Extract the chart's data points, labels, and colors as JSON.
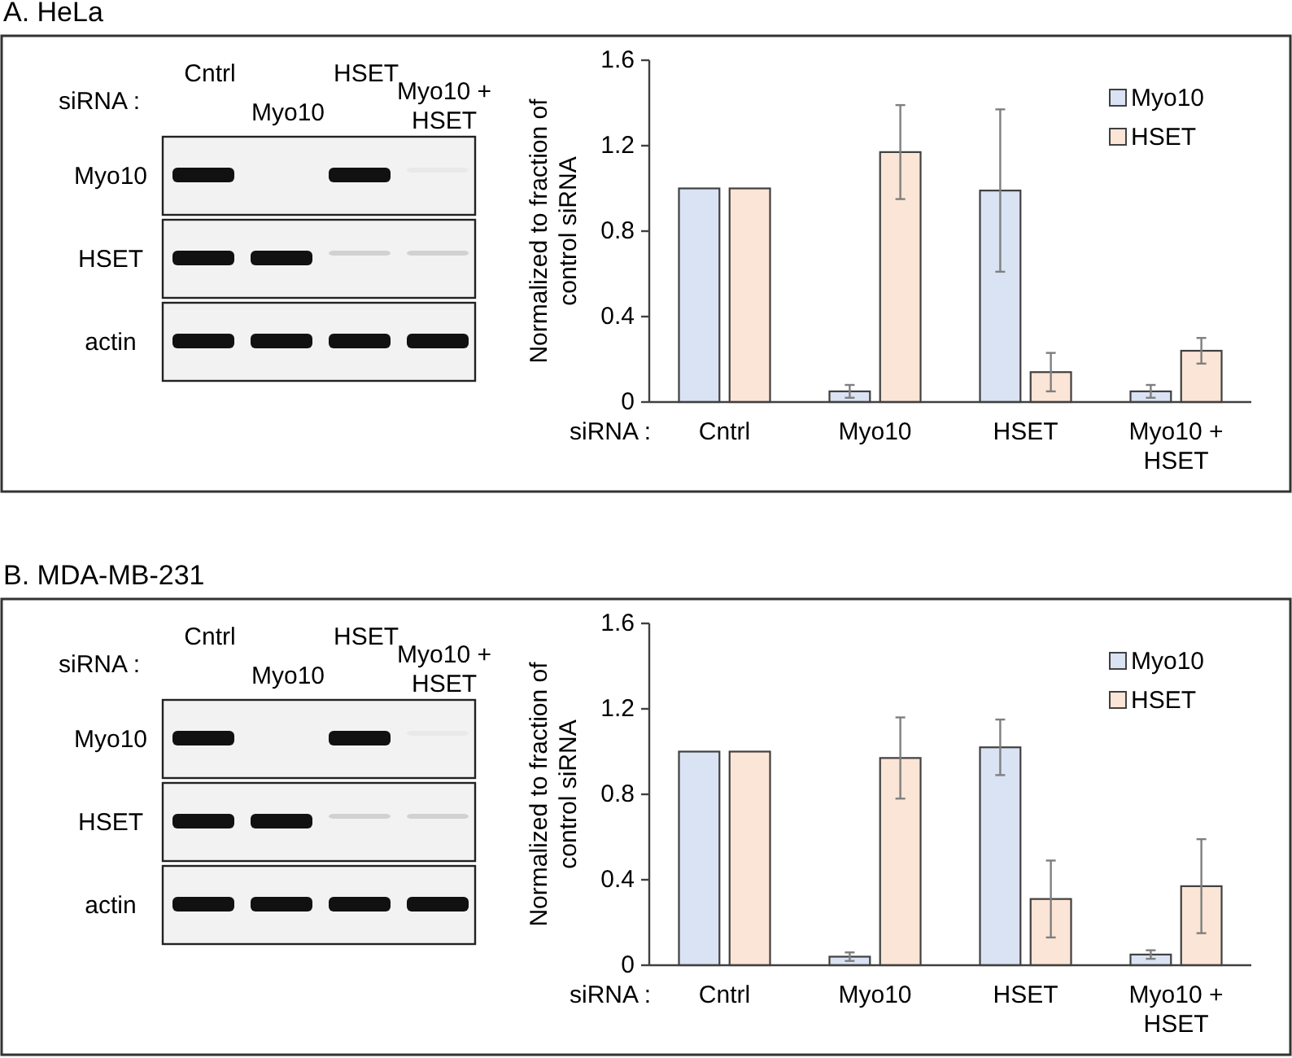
{
  "chart_data": [
    {
      "type": "bar",
      "xlabel": "siRNA :",
      "ylabel": "Normalized to fraction of control siRNA",
      "categories": [
        "Cntrl",
        "Myo10",
        "HSET",
        "Myo10 + HSET"
      ],
      "series": [
        {
          "name": "Myo10",
          "color": "#dae3f3",
          "values": [
            1,
            0.05,
            0.99,
            0.05
          ],
          "errors": [
            null,
            0.03,
            0.38,
            0.03
          ]
        },
        {
          "name": "HSET",
          "color": "#fbe5d6",
          "values": [
            1,
            1.17,
            0.14,
            0.24
          ],
          "errors": [
            null,
            0.22,
            0.09,
            0.06
          ]
        }
      ],
      "ylim": [
        0,
        1.6
      ],
      "yticks": [
        0,
        0.4,
        0.8,
        1.2,
        1.6
      ],
      "legend": "top right",
      "annotations": [
        "A. HeLa",
        "siRNA :",
        "Cntrl",
        "Myo10",
        "HSET",
        "Myo10 + HSET",
        "Myo10",
        "HSET",
        "actin"
      ]
    },
    {
      "type": "bar",
      "xlabel": "siRNA :",
      "ylabel": "Normalized to fraction of control siRNA",
      "categories": [
        "Cntrl",
        "Myo10",
        "HSET",
        "Myo10 + HSET"
      ],
      "series": [
        {
          "name": "Myo10",
          "color": "#dae3f3",
          "values": [
            1,
            0.04,
            1.02,
            0.05
          ],
          "errors": [
            null,
            0.02,
            0.13,
            0.02
          ]
        },
        {
          "name": "HSET",
          "color": "#fbe5d6",
          "values": [
            1,
            0.97,
            0.31,
            0.37
          ],
          "errors": [
            null,
            0.19,
            0.18,
            0.22
          ]
        }
      ],
      "ylim": [
        0,
        1.6
      ],
      "yticks": [
        0,
        0.4,
        0.8,
        1.2,
        1.6
      ],
      "legend": "top right",
      "annotations": [
        "B. MDA-MB-231",
        "siRNA :",
        "Cntrl",
        "Myo10",
        "HSET",
        "Myo10 + HSET",
        "Myo10",
        "HSET",
        "actin"
      ]
    }
  ]
}
